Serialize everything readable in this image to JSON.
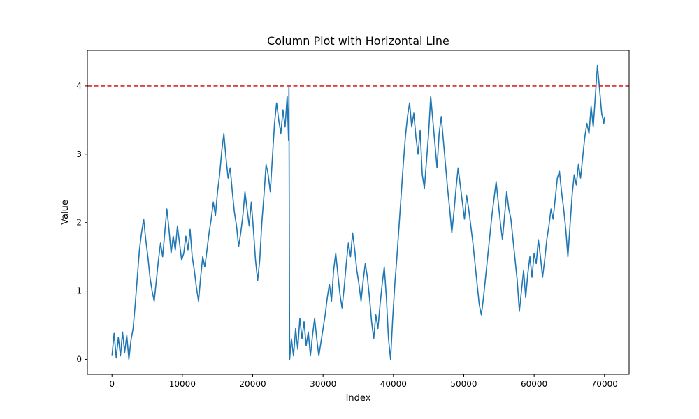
{
  "chart_data": {
    "type": "line",
    "title": "Column Plot with Horizontal Line",
    "xlabel": "Index",
    "ylabel": "Value",
    "xlim": [
      -3500,
      73500
    ],
    "ylim": [
      -0.22,
      4.52
    ],
    "x_ticks": [
      0,
      10000,
      20000,
      30000,
      40000,
      50000,
      60000,
      70000
    ],
    "x_tick_labels": [
      "0",
      "10000",
      "20000",
      "30000",
      "40000",
      "50000",
      "60000",
      "70000"
    ],
    "y_ticks": [
      0,
      1,
      2,
      3,
      4
    ],
    "y_tick_labels": [
      "0",
      "1",
      "2",
      "3",
      "4"
    ],
    "grid": false,
    "series": [
      {
        "color": "#1f77b4",
        "points": [
          [
            0,
            0.05
          ],
          [
            300,
            0.38
          ],
          [
            600,
            0.02
          ],
          [
            900,
            0.32
          ],
          [
            1200,
            0.05
          ],
          [
            1500,
            0.4
          ],
          [
            1800,
            0.1
          ],
          [
            2100,
            0.35
          ],
          [
            2400,
            0.0
          ],
          [
            2700,
            0.28
          ],
          [
            3000,
            0.45
          ],
          [
            3300,
            0.8
          ],
          [
            3600,
            1.2
          ],
          [
            3900,
            1.6
          ],
          [
            4200,
            1.85
          ],
          [
            4500,
            2.05
          ],
          [
            4800,
            1.75
          ],
          [
            5100,
            1.5
          ],
          [
            5400,
            1.2
          ],
          [
            5700,
            1.0
          ],
          [
            6000,
            0.85
          ],
          [
            6300,
            1.15
          ],
          [
            6600,
            1.45
          ],
          [
            6900,
            1.7
          ],
          [
            7200,
            1.5
          ],
          [
            7500,
            1.85
          ],
          [
            7800,
            2.2
          ],
          [
            8100,
            1.9
          ],
          [
            8400,
            1.55
          ],
          [
            8700,
            1.8
          ],
          [
            9000,
            1.6
          ],
          [
            9300,
            1.95
          ],
          [
            9600,
            1.7
          ],
          [
            9900,
            1.45
          ],
          [
            10200,
            1.55
          ],
          [
            10500,
            1.8
          ],
          [
            10800,
            1.6
          ],
          [
            11100,
            1.9
          ],
          [
            11400,
            1.5
          ],
          [
            11700,
            1.3
          ],
          [
            12000,
            1.05
          ],
          [
            12300,
            0.85
          ],
          [
            12600,
            1.2
          ],
          [
            12900,
            1.5
          ],
          [
            13200,
            1.35
          ],
          [
            13500,
            1.6
          ],
          [
            13800,
            1.85
          ],
          [
            14100,
            2.05
          ],
          [
            14400,
            2.3
          ],
          [
            14700,
            2.1
          ],
          [
            15000,
            2.45
          ],
          [
            15300,
            2.7
          ],
          [
            15600,
            3.05
          ],
          [
            15900,
            3.3
          ],
          [
            16200,
            2.95
          ],
          [
            16500,
            2.65
          ],
          [
            16800,
            2.8
          ],
          [
            17100,
            2.45
          ],
          [
            17400,
            2.15
          ],
          [
            17700,
            1.95
          ],
          [
            18000,
            1.65
          ],
          [
            18300,
            1.85
          ],
          [
            18600,
            2.1
          ],
          [
            18900,
            2.45
          ],
          [
            19200,
            2.2
          ],
          [
            19500,
            1.95
          ],
          [
            19800,
            2.3
          ],
          [
            20100,
            1.9
          ],
          [
            20400,
            1.45
          ],
          [
            20700,
            1.15
          ],
          [
            21000,
            1.45
          ],
          [
            21300,
            2.0
          ],
          [
            21600,
            2.4
          ],
          [
            21900,
            2.85
          ],
          [
            22200,
            2.7
          ],
          [
            22500,
            2.45
          ],
          [
            22800,
            2.95
          ],
          [
            23100,
            3.45
          ],
          [
            23400,
            3.75
          ],
          [
            23700,
            3.5
          ],
          [
            24000,
            3.3
          ],
          [
            24300,
            3.65
          ],
          [
            24600,
            3.4
          ],
          [
            24900,
            3.85
          ],
          [
            25100,
            3.2
          ],
          [
            25150,
            4.0
          ],
          [
            25250,
            0.0
          ],
          [
            25500,
            0.3
          ],
          [
            25800,
            0.05
          ],
          [
            26100,
            0.45
          ],
          [
            26400,
            0.15
          ],
          [
            26700,
            0.6
          ],
          [
            27000,
            0.3
          ],
          [
            27300,
            0.55
          ],
          [
            27600,
            0.2
          ],
          [
            27900,
            0.4
          ],
          [
            28200,
            0.05
          ],
          [
            28500,
            0.35
          ],
          [
            28800,
            0.6
          ],
          [
            29100,
            0.3
          ],
          [
            29400,
            0.05
          ],
          [
            29700,
            0.25
          ],
          [
            30000,
            0.45
          ],
          [
            30300,
            0.65
          ],
          [
            30600,
            0.9
          ],
          [
            30900,
            1.1
          ],
          [
            31200,
            0.85
          ],
          [
            31500,
            1.3
          ],
          [
            31800,
            1.55
          ],
          [
            32100,
            1.25
          ],
          [
            32400,
            0.95
          ],
          [
            32700,
            0.75
          ],
          [
            33000,
            1.05
          ],
          [
            33300,
            1.4
          ],
          [
            33600,
            1.7
          ],
          [
            33900,
            1.5
          ],
          [
            34200,
            1.85
          ],
          [
            34500,
            1.6
          ],
          [
            34800,
            1.3
          ],
          [
            35100,
            1.1
          ],
          [
            35400,
            0.85
          ],
          [
            35700,
            1.15
          ],
          [
            36000,
            1.4
          ],
          [
            36300,
            1.2
          ],
          [
            36600,
            0.9
          ],
          [
            36900,
            0.55
          ],
          [
            37200,
            0.3
          ],
          [
            37500,
            0.65
          ],
          [
            37800,
            0.45
          ],
          [
            38100,
            0.8
          ],
          [
            38400,
            1.1
          ],
          [
            38700,
            1.35
          ],
          [
            39000,
            0.9
          ],
          [
            39300,
            0.3
          ],
          [
            39600,
            0.0
          ],
          [
            39900,
            0.6
          ],
          [
            40200,
            1.1
          ],
          [
            40500,
            1.5
          ],
          [
            40800,
            1.95
          ],
          [
            41100,
            2.4
          ],
          [
            41400,
            2.85
          ],
          [
            41700,
            3.25
          ],
          [
            42000,
            3.55
          ],
          [
            42300,
            3.75
          ],
          [
            42600,
            3.4
          ],
          [
            42900,
            3.6
          ],
          [
            43200,
            3.25
          ],
          [
            43500,
            3.0
          ],
          [
            43800,
            3.35
          ],
          [
            44100,
            2.7
          ],
          [
            44400,
            2.5
          ],
          [
            44700,
            2.9
          ],
          [
            45000,
            3.3
          ],
          [
            45300,
            3.85
          ],
          [
            45600,
            3.5
          ],
          [
            45900,
            3.15
          ],
          [
            46200,
            2.8
          ],
          [
            46500,
            3.3
          ],
          [
            46800,
            3.55
          ],
          [
            47100,
            3.2
          ],
          [
            47400,
            2.85
          ],
          [
            47700,
            2.5
          ],
          [
            48000,
            2.2
          ],
          [
            48300,
            1.85
          ],
          [
            48600,
            2.15
          ],
          [
            48900,
            2.5
          ],
          [
            49200,
            2.8
          ],
          [
            49500,
            2.55
          ],
          [
            49800,
            2.3
          ],
          [
            50100,
            2.05
          ],
          [
            50400,
            2.4
          ],
          [
            50700,
            2.2
          ],
          [
            51000,
            1.95
          ],
          [
            51300,
            1.7
          ],
          [
            51600,
            1.4
          ],
          [
            51900,
            1.1
          ],
          [
            52200,
            0.8
          ],
          [
            52500,
            0.65
          ],
          [
            52800,
            0.9
          ],
          [
            53100,
            1.2
          ],
          [
            53400,
            1.5
          ],
          [
            53700,
            1.8
          ],
          [
            54000,
            2.1
          ],
          [
            54300,
            2.35
          ],
          [
            54600,
            2.6
          ],
          [
            54900,
            2.3
          ],
          [
            55200,
            2.0
          ],
          [
            55500,
            1.75
          ],
          [
            55800,
            2.1
          ],
          [
            56100,
            2.45
          ],
          [
            56400,
            2.2
          ],
          [
            56700,
            2.05
          ],
          [
            57000,
            1.75
          ],
          [
            57300,
            1.45
          ],
          [
            57600,
            1.15
          ],
          [
            57900,
            0.7
          ],
          [
            58200,
            1.0
          ],
          [
            58500,
            1.3
          ],
          [
            58800,
            0.9
          ],
          [
            59100,
            1.25
          ],
          [
            59400,
            1.5
          ],
          [
            59700,
            1.2
          ],
          [
            60000,
            1.55
          ],
          [
            60300,
            1.4
          ],
          [
            60600,
            1.75
          ],
          [
            60900,
            1.5
          ],
          [
            61200,
            1.2
          ],
          [
            61500,
            1.45
          ],
          [
            61800,
            1.75
          ],
          [
            62100,
            1.95
          ],
          [
            62400,
            2.2
          ],
          [
            62700,
            2.05
          ],
          [
            63000,
            2.35
          ],
          [
            63300,
            2.65
          ],
          [
            63600,
            2.75
          ],
          [
            63900,
            2.45
          ],
          [
            64200,
            2.2
          ],
          [
            64500,
            1.9
          ],
          [
            64800,
            1.5
          ],
          [
            65100,
            1.95
          ],
          [
            65400,
            2.4
          ],
          [
            65700,
            2.7
          ],
          [
            66000,
            2.55
          ],
          [
            66300,
            2.85
          ],
          [
            66600,
            2.65
          ],
          [
            66900,
            2.95
          ],
          [
            67200,
            3.25
          ],
          [
            67500,
            3.45
          ],
          [
            67800,
            3.3
          ],
          [
            68100,
            3.7
          ],
          [
            68400,
            3.4
          ],
          [
            68700,
            3.85
          ],
          [
            69000,
            4.3
          ],
          [
            69300,
            3.95
          ],
          [
            69600,
            3.6
          ],
          [
            69900,
            3.45
          ],
          [
            70000,
            3.55
          ]
        ]
      },
      {
        "color": "#d62728",
        "style": "dashed",
        "y": 4
      }
    ]
  }
}
